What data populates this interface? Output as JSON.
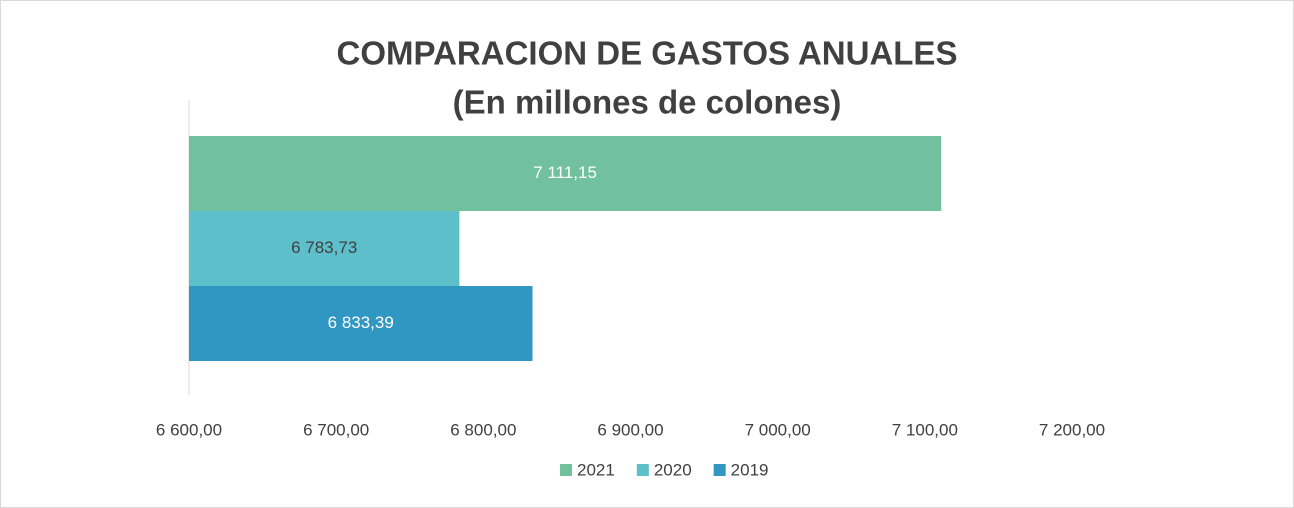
{
  "chart_data": {
    "type": "bar",
    "orientation": "horizontal",
    "title": "COMPARACION DE GASTOS ANUALES",
    "subtitle": "(En millones de colones)",
    "categories": [
      null
    ],
    "series": [
      {
        "name": "2021",
        "color": "#72c19e",
        "label_color": "#ffffff",
        "values": [
          7111.15
        ],
        "value_labels": [
          "7 111,15"
        ]
      },
      {
        "name": "2020",
        "color": "#5dbfca",
        "label_color": "#404040",
        "values": [
          6783.73
        ],
        "value_labels": [
          "6 783,73"
        ]
      },
      {
        "name": "2019",
        "color": "#2f97c1",
        "label_color": "#ffffff",
        "values": [
          6833.39
        ],
        "value_labels": [
          "6 833,39"
        ]
      }
    ],
    "xlim": [
      6600,
      7200
    ],
    "xticks": [
      {
        "value": 6600,
        "label": "6 600,00"
      },
      {
        "value": 6700,
        "label": "6 700,00"
      },
      {
        "value": 6800,
        "label": "6 800,00"
      },
      {
        "value": 6900,
        "label": "6 900,00"
      },
      {
        "value": 7000,
        "label": "7 000,00"
      },
      {
        "value": 7100,
        "label": "7 100,00"
      },
      {
        "value": 7200,
        "label": "7 200,00"
      }
    ],
    "grid": false,
    "legend": "bottom"
  }
}
